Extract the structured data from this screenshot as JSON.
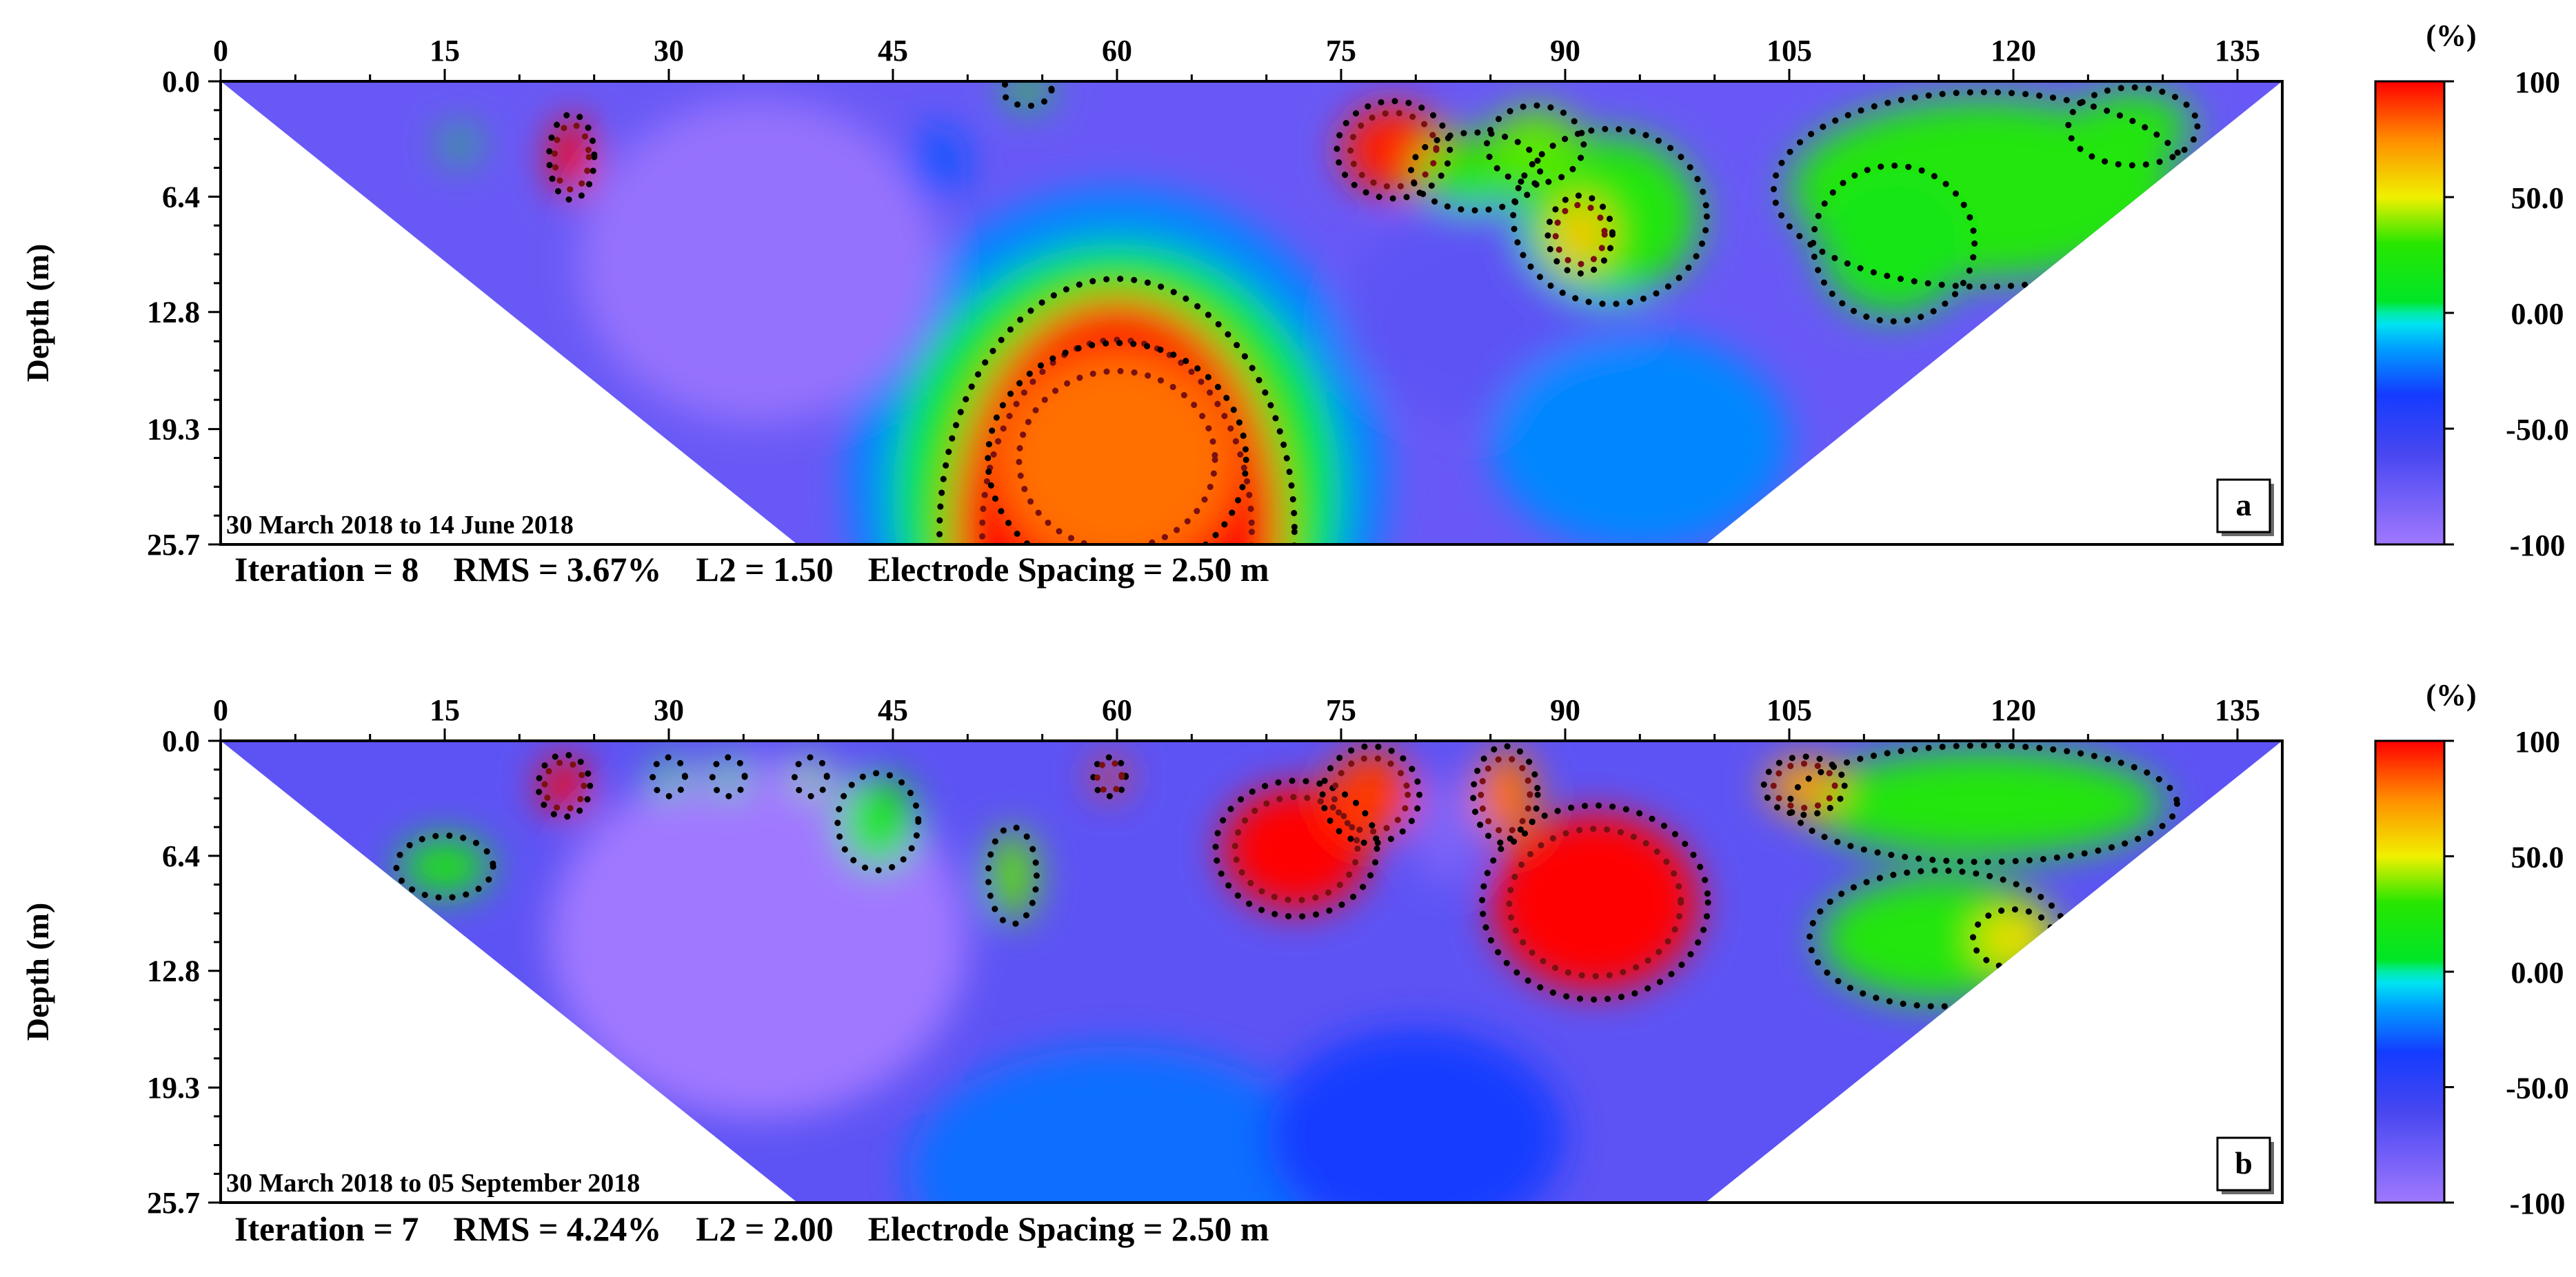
{
  "chart_data": [
    {
      "type": "heatmap",
      "panel_label": "a",
      "date_range": "30 March 2018 to 14 June 2018",
      "stats_line": "Iteration = 8    RMS = 3.67%    L2 = 1.50    Electrode Spacing = 2.50 m",
      "ylabel": "Depth (m)",
      "xlabel": "",
      "x_ticks": [
        "0",
        "15",
        "30",
        "45",
        "60",
        "75",
        "90",
        "105",
        "120",
        "135"
      ],
      "x_tick_values": [
        0,
        15,
        30,
        45,
        60,
        75,
        90,
        105,
        120,
        135
      ],
      "y_ticks": [
        "0.0",
        "6.4",
        "12.8",
        "19.3",
        "25.7"
      ],
      "y_tick_values": [
        0.0,
        6.4,
        12.8,
        19.3,
        25.7
      ],
      "xlim": [
        0,
        138
      ],
      "ylim": [
        0,
        25.7
      ],
      "pseudosection_trapezoid": {
        "top": [
          0,
          138
        ],
        "bottom": [
          38.6,
          99.4
        ]
      },
      "colorbar": {
        "unit": "(%)",
        "labels": [
          "100",
          "50.0",
          "0.00",
          "-50.0",
          "-100"
        ],
        "range": [
          -100,
          100
        ]
      },
      "anomalies": [
        {
          "x": 23.5,
          "depth": 4.2,
          "rx": 1.4,
          "ry": 2.2,
          "value": 100
        },
        {
          "x": 78.5,
          "depth": 3.8,
          "rx": 3.5,
          "ry": 2.5,
          "value": 95
        },
        {
          "x": 84,
          "depth": 5.0,
          "rx": 4.0,
          "ry": 2.0,
          "value": 30
        },
        {
          "x": 93,
          "depth": 7.5,
          "rx": 6.0,
          "ry": 4.5,
          "value": 25
        },
        {
          "x": 91,
          "depth": 8.5,
          "rx": 2.0,
          "ry": 2.0,
          "value": 60
        },
        {
          "x": 88,
          "depth": 3.5,
          "rx": 3.0,
          "ry": 2.0,
          "value": 35
        },
        {
          "x": 118,
          "depth": 6.0,
          "rx": 13.0,
          "ry": 5.0,
          "value": 25
        },
        {
          "x": 112,
          "depth": 9.0,
          "rx": 5.0,
          "ry": 4.0,
          "value": 18
        },
        {
          "x": 128,
          "depth": 2.5,
          "rx": 4.0,
          "ry": 2.0,
          "value": 25
        },
        {
          "x": 60,
          "depth": 25.0,
          "rx": 11.0,
          "ry": 13.0,
          "value": 100
        },
        {
          "x": 60,
          "depth": 21.0,
          "rx": 8.0,
          "ry": 6.0,
          "value": 80
        },
        {
          "x": 60,
          "depth": 23.0,
          "rx": 15.0,
          "ry": 14.0,
          "value": 10
        },
        {
          "x": 60,
          "depth": 22.0,
          "rx": 18.0,
          "ry": 16.0,
          "value": -20
        },
        {
          "x": 36,
          "depth": 10.0,
          "rx": 12.0,
          "ry": 9.0,
          "value": -95
        },
        {
          "x": 85,
          "depth": 13.0,
          "rx": 10.0,
          "ry": 6.0,
          "value": -70
        },
        {
          "x": 48,
          "depth": 4.5,
          "rx": 2.0,
          "ry": 2.0,
          "value": -30
        },
        {
          "x": 95,
          "depth": 20.0,
          "rx": 10.0,
          "ry": 6.0,
          "value": -20
        },
        {
          "x": 16,
          "depth": 3.5,
          "rx": 1.0,
          "ry": 0.8,
          "value": 10
        },
        {
          "x": 54,
          "depth": 0.5,
          "rx": 1.5,
          "ry": 0.8,
          "value": 20
        }
      ],
      "background_value": -75
    },
    {
      "type": "heatmap",
      "panel_label": "b",
      "date_range": "30 March 2018 to 05 September 2018",
      "stats_line": "Iteration = 7    RMS = 4.24%    L2 = 2.00    Electrode Spacing = 2.50 m",
      "ylabel": "Depth (m)",
      "xlabel": "",
      "x_ticks": [
        "0",
        "15",
        "30",
        "45",
        "60",
        "75",
        "90",
        "105",
        "120",
        "135"
      ],
      "x_tick_values": [
        0,
        15,
        30,
        45,
        60,
        75,
        90,
        105,
        120,
        135
      ],
      "y_ticks": [
        "0.0",
        "6.4",
        "12.8",
        "19.3",
        "25.7"
      ],
      "y_tick_values": [
        0.0,
        6.4,
        12.8,
        19.3,
        25.7
      ],
      "xlim": [
        0,
        138
      ],
      "ylim": [
        0,
        25.7
      ],
      "pseudosection_trapezoid": {
        "top": [
          0,
          138
        ],
        "bottom": [
          38.6,
          99.4
        ]
      },
      "colorbar": {
        "unit": "(%)",
        "labels": [
          "100",
          "50.0",
          "0.00",
          "-50.0",
          "-100"
        ],
        "range": [
          -100,
          100
        ]
      },
      "anomalies": [
        {
          "x": 23,
          "depth": 2.5,
          "rx": 1.6,
          "ry": 1.6,
          "value": 100
        },
        {
          "x": 15,
          "depth": 7.0,
          "rx": 3.0,
          "ry": 1.6,
          "value": 20
        },
        {
          "x": 30,
          "depth": 2.0,
          "rx": 1.0,
          "ry": 1.0,
          "value": 30
        },
        {
          "x": 34,
          "depth": 2.0,
          "rx": 1.0,
          "ry": 1.0,
          "value": 30
        },
        {
          "x": 39.5,
          "depth": 2.0,
          "rx": 1.0,
          "ry": 1.0,
          "value": 40
        },
        {
          "x": 44,
          "depth": 4.5,
          "rx": 2.5,
          "ry": 2.5,
          "value": 20
        },
        {
          "x": 53,
          "depth": 7.5,
          "rx": 1.5,
          "ry": 2.5,
          "value": 35
        },
        {
          "x": 59.5,
          "depth": 2.0,
          "rx": 1.0,
          "ry": 1.0,
          "value": 90
        },
        {
          "x": 72,
          "depth": 6.0,
          "rx": 5.0,
          "ry": 3.5,
          "value": 100
        },
        {
          "x": 77,
          "depth": 3.0,
          "rx": 3.0,
          "ry": 2.5,
          "value": 90
        },
        {
          "x": 92,
          "depth": 9.0,
          "rx": 7.0,
          "ry": 5.0,
          "value": 100
        },
        {
          "x": 86,
          "depth": 3.0,
          "rx": 2.0,
          "ry": 2.5,
          "value": 80
        },
        {
          "x": 106,
          "depth": 2.5,
          "rx": 2.5,
          "ry": 1.5,
          "value": 70
        },
        {
          "x": 118,
          "depth": 3.5,
          "rx": 12.0,
          "ry": 3.0,
          "value": 25
        },
        {
          "x": 115,
          "depth": 11.0,
          "rx": 8.0,
          "ry": 3.5,
          "value": 25
        },
        {
          "x": 120,
          "depth": 11.0,
          "rx": 2.5,
          "ry": 1.5,
          "value": 55
        },
        {
          "x": 36,
          "depth": 11.0,
          "rx": 14.0,
          "ry": 10.0,
          "value": -100
        },
        {
          "x": 60,
          "depth": 24.0,
          "rx": 14.0,
          "ry": 7.0,
          "value": -25
        },
        {
          "x": 80,
          "depth": 22.0,
          "rx": 10.0,
          "ry": 6.0,
          "value": -35
        },
        {
          "x": 82,
          "depth": 5.0,
          "rx": 2.0,
          "ry": 3.0,
          "value": -85
        }
      ],
      "background_value": -70
    }
  ]
}
